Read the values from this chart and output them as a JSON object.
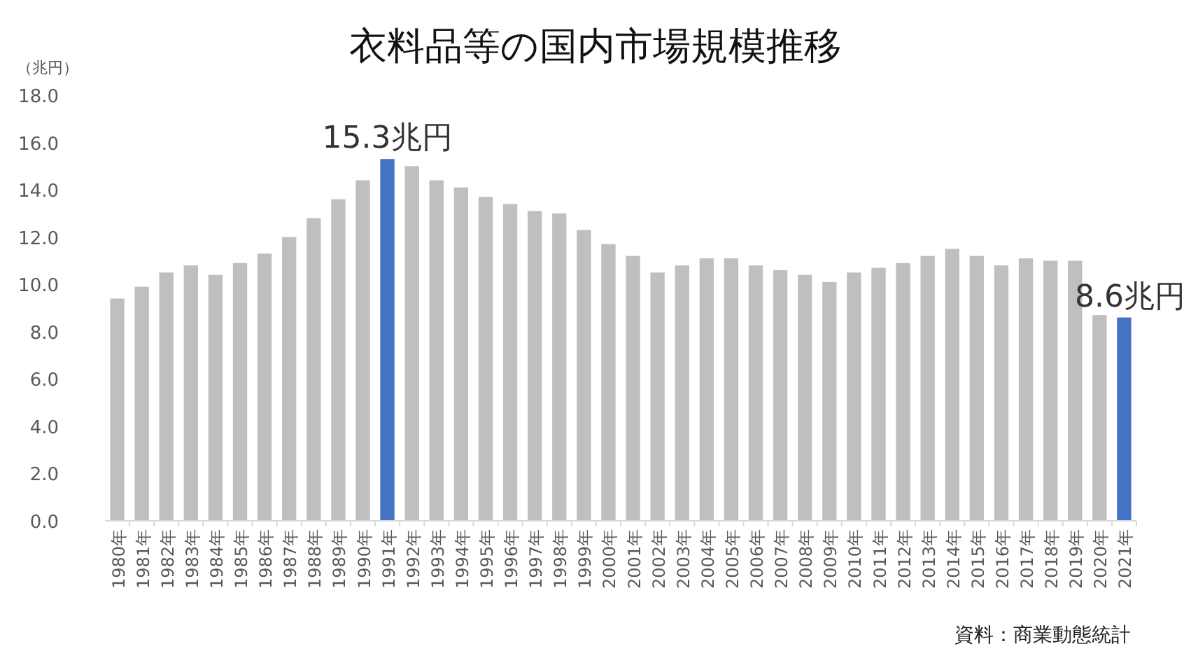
{
  "chart_data": {
    "type": "bar",
    "title": "衣料品等の国内市場規模推移",
    "ylabel": "（兆円）",
    "categories": [
      "1980年",
      "1981年",
      "1982年",
      "1983年",
      "1984年",
      "1985年",
      "1986年",
      "1987年",
      "1988年",
      "1989年",
      "1990年",
      "1991年",
      "1992年",
      "1993年",
      "1994年",
      "1995年",
      "1996年",
      "1997年",
      "1998年",
      "1999年",
      "2000年",
      "2001年",
      "2002年",
      "2003年",
      "2004年",
      "2005年",
      "2006年",
      "2007年",
      "2008年",
      "2009年",
      "2010年",
      "2011年",
      "2012年",
      "2013年",
      "2014年",
      "2015年",
      "2016年",
      "2017年",
      "2018年",
      "2019年",
      "2020年",
      "2021年"
    ],
    "values": [
      9.4,
      9.9,
      10.5,
      10.8,
      10.4,
      10.9,
      11.3,
      12.0,
      12.8,
      13.6,
      14.4,
      15.3,
      15.0,
      14.4,
      14.1,
      13.7,
      13.4,
      13.1,
      13.0,
      12.3,
      11.7,
      11.2,
      10.5,
      10.8,
      11.1,
      11.1,
      10.8,
      10.6,
      10.4,
      10.1,
      10.5,
      10.7,
      10.9,
      11.2,
      11.5,
      11.2,
      10.8,
      11.1,
      11.0,
      11.0,
      8.7,
      8.6
    ],
    "colors": [
      "#bfbfbf",
      "#bfbfbf",
      "#bfbfbf",
      "#bfbfbf",
      "#bfbfbf",
      "#bfbfbf",
      "#bfbfbf",
      "#bfbfbf",
      "#bfbfbf",
      "#bfbfbf",
      "#bfbfbf",
      "#4472c4",
      "#bfbfbf",
      "#bfbfbf",
      "#bfbfbf",
      "#bfbfbf",
      "#bfbfbf",
      "#bfbfbf",
      "#bfbfbf",
      "#bfbfbf",
      "#bfbfbf",
      "#bfbfbf",
      "#bfbfbf",
      "#bfbfbf",
      "#bfbfbf",
      "#bfbfbf",
      "#bfbfbf",
      "#bfbfbf",
      "#bfbfbf",
      "#bfbfbf",
      "#bfbfbf",
      "#bfbfbf",
      "#bfbfbf",
      "#bfbfbf",
      "#bfbfbf",
      "#bfbfbf",
      "#bfbfbf",
      "#bfbfbf",
      "#bfbfbf",
      "#bfbfbf",
      "#bfbfbf",
      "#4472c4"
    ],
    "value_labels": [
      null,
      null,
      null,
      null,
      null,
      null,
      null,
      null,
      null,
      null,
      null,
      "15.3兆円",
      null,
      null,
      null,
      null,
      null,
      null,
      null,
      null,
      null,
      null,
      null,
      null,
      null,
      null,
      null,
      null,
      null,
      null,
      null,
      null,
      null,
      null,
      null,
      null,
      null,
      null,
      null,
      null,
      null,
      "8.6兆円"
    ],
    "ylim": [
      0,
      18
    ],
    "yticks": [
      {
        "value": 0,
        "label": "0.0"
      },
      {
        "value": 2,
        "label": "2.0"
      },
      {
        "value": 4,
        "label": "4.0"
      },
      {
        "value": 6,
        "label": "6.0"
      },
      {
        "value": 8,
        "label": "8.0"
      },
      {
        "value": 10,
        "label": "10.0"
      },
      {
        "value": 12,
        "label": "12.0"
      },
      {
        "value": 14,
        "label": "14.0"
      },
      {
        "value": 16,
        "label": "16.0"
      },
      {
        "value": 18,
        "label": "18.0"
      }
    ],
    "annotations": [
      "資料：商業動態統計"
    ]
  }
}
